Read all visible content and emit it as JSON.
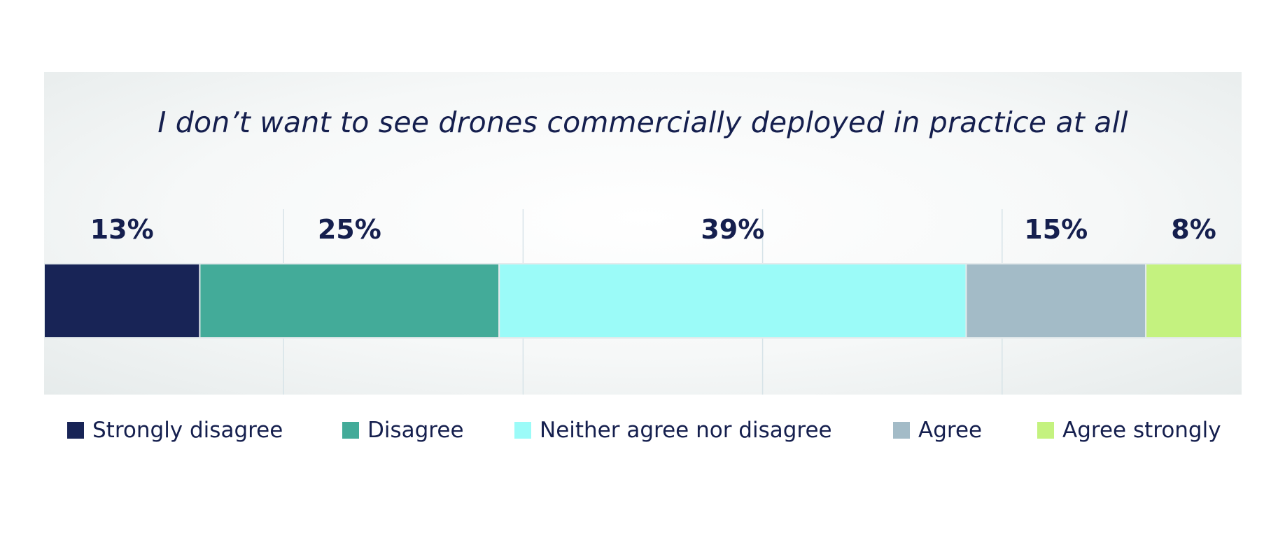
{
  "chart_data": {
    "type": "bar",
    "orientation": "horizontal-stacked",
    "title": "I don’t want to see drones commercially deployed in practice at all",
    "categories": [
      "Strongly disagree",
      "Disagree",
      "Neither agree nor disagree",
      "Agree",
      "Agree strongly"
    ],
    "values": [
      13,
      25,
      39,
      15,
      8
    ],
    "value_labels": [
      "13%",
      "25%",
      "39%",
      "15%",
      "8%"
    ],
    "colors": [
      "#182456",
      "#43ab99",
      "#9bfbf8",
      "#a3bbc7",
      "#c4f27f"
    ],
    "xlim": [
      0,
      100
    ],
    "grid": true,
    "legend_position": "bottom",
    "xlabel": "",
    "ylabel": ""
  }
}
